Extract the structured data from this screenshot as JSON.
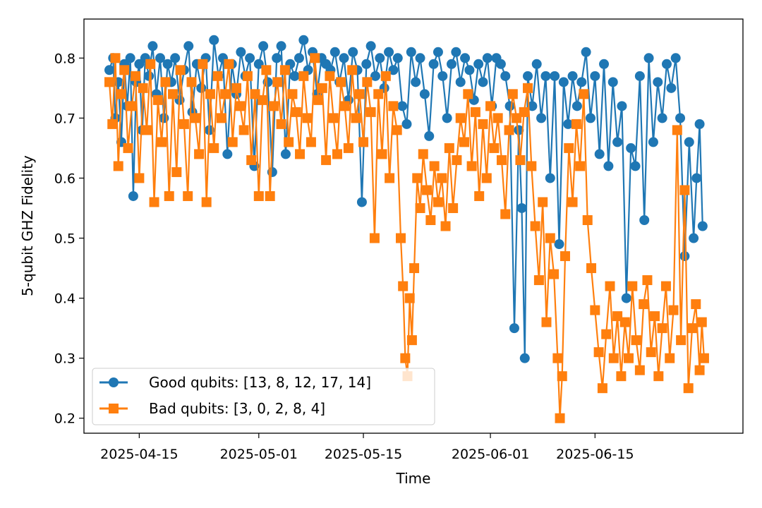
{
  "chart_data": {
    "type": "line",
    "title": "",
    "xlabel": "Time",
    "ylabel": "5-qubit GHZ Fidelity",
    "grid": false,
    "legend_position": "lower-left",
    "x_ticks": [
      "2025-04-15",
      "2025-05-01",
      "2025-05-15",
      "2025-06-01",
      "2025-06-15"
    ],
    "x_tick_days": [
      4,
      20,
      34,
      51,
      65
    ],
    "x_axis_note": "x values are days since 2025-04-11",
    "xlim": [
      -3.4,
      84.8
    ],
    "y_ticks": [
      "0.2",
      "0.3",
      "0.4",
      "0.5",
      "0.6",
      "0.7",
      "0.8"
    ],
    "y_tick_values": [
      0.2,
      0.3,
      0.4,
      0.5,
      0.6,
      0.7,
      0.8
    ],
    "ylim": [
      0.175,
      0.865
    ],
    "series": [
      {
        "name": "Good qubits: [13, 8, 12, 17, 14]",
        "color": "#1f77b4",
        "marker": "circle",
        "points": [
          [
            0.0,
            0.78
          ],
          [
            0.5,
            0.8
          ],
          [
            0.8,
            0.7
          ],
          [
            1.2,
            0.76
          ],
          [
            1.6,
            0.66
          ],
          [
            2.0,
            0.79
          ],
          [
            2.4,
            0.72
          ],
          [
            2.8,
            0.8
          ],
          [
            3.2,
            0.57
          ],
          [
            3.6,
            0.76
          ],
          [
            4.0,
            0.79
          ],
          [
            4.4,
            0.68
          ],
          [
            4.8,
            0.8
          ],
          [
            5.3,
            0.77
          ],
          [
            5.8,
            0.82
          ],
          [
            6.3,
            0.74
          ],
          [
            6.8,
            0.8
          ],
          [
            7.3,
            0.7
          ],
          [
            7.8,
            0.79
          ],
          [
            8.3,
            0.76
          ],
          [
            8.8,
            0.8
          ],
          [
            9.4,
            0.73
          ],
          [
            10.0,
            0.78
          ],
          [
            10.6,
            0.82
          ],
          [
            11.1,
            0.71
          ],
          [
            11.7,
            0.79
          ],
          [
            12.3,
            0.75
          ],
          [
            12.9,
            0.8
          ],
          [
            13.4,
            0.68
          ],
          [
            14.0,
            0.83
          ],
          [
            14.6,
            0.77
          ],
          [
            15.2,
            0.8
          ],
          [
            15.8,
            0.64
          ],
          [
            16.4,
            0.79
          ],
          [
            17.0,
            0.74
          ],
          [
            17.6,
            0.81
          ],
          [
            18.2,
            0.77
          ],
          [
            18.8,
            0.8
          ],
          [
            19.4,
            0.62
          ],
          [
            20.0,
            0.79
          ],
          [
            20.6,
            0.82
          ],
          [
            21.2,
            0.76
          ],
          [
            21.8,
            0.61
          ],
          [
            22.4,
            0.8
          ],
          [
            23.0,
            0.82
          ],
          [
            23.6,
            0.64
          ],
          [
            24.2,
            0.79
          ],
          [
            24.8,
            0.77
          ],
          [
            25.4,
            0.8
          ],
          [
            26.0,
            0.83
          ],
          [
            26.6,
            0.78
          ],
          [
            27.2,
            0.81
          ],
          [
            27.8,
            0.74
          ],
          [
            28.4,
            0.8
          ],
          [
            29.0,
            0.79
          ],
          [
            29.6,
            0.78
          ],
          [
            30.2,
            0.81
          ],
          [
            30.8,
            0.76
          ],
          [
            31.4,
            0.8
          ],
          [
            32.0,
            0.73
          ],
          [
            32.6,
            0.81
          ],
          [
            33.2,
            0.78
          ],
          [
            33.8,
            0.56
          ],
          [
            34.4,
            0.79
          ],
          [
            35.0,
            0.82
          ],
          [
            35.6,
            0.77
          ],
          [
            36.2,
            0.8
          ],
          [
            36.8,
            0.75
          ],
          [
            37.4,
            0.81
          ],
          [
            38.0,
            0.78
          ],
          [
            38.6,
            0.8
          ],
          [
            39.2,
            0.72
          ],
          [
            39.8,
            0.69
          ],
          [
            40.4,
            0.81
          ],
          [
            41.0,
            0.76
          ],
          [
            41.6,
            0.8
          ],
          [
            42.2,
            0.74
          ],
          [
            42.8,
            0.67
          ],
          [
            43.4,
            0.79
          ],
          [
            44.0,
            0.81
          ],
          [
            44.6,
            0.77
          ],
          [
            45.2,
            0.7
          ],
          [
            45.8,
            0.79
          ],
          [
            46.4,
            0.81
          ],
          [
            47.0,
            0.76
          ],
          [
            47.6,
            0.8
          ],
          [
            48.2,
            0.78
          ],
          [
            48.8,
            0.73
          ],
          [
            49.4,
            0.79
          ],
          [
            50.0,
            0.76
          ],
          [
            50.6,
            0.8
          ],
          [
            51.2,
            0.72
          ],
          [
            51.8,
            0.8
          ],
          [
            52.4,
            0.79
          ],
          [
            53.0,
            0.77
          ],
          [
            53.6,
            0.72
          ],
          [
            54.2,
            0.35
          ],
          [
            54.8,
            0.68
          ],
          [
            55.2,
            0.55
          ],
          [
            55.6,
            0.3
          ],
          [
            56.0,
            0.77
          ],
          [
            56.6,
            0.72
          ],
          [
            57.2,
            0.79
          ],
          [
            57.8,
            0.7
          ],
          [
            58.4,
            0.77
          ],
          [
            59.0,
            0.6
          ],
          [
            59.6,
            0.77
          ],
          [
            60.2,
            0.49
          ],
          [
            60.8,
            0.76
          ],
          [
            61.4,
            0.69
          ],
          [
            62.0,
            0.77
          ],
          [
            62.6,
            0.72
          ],
          [
            63.2,
            0.76
          ],
          [
            63.8,
            0.81
          ],
          [
            64.4,
            0.7
          ],
          [
            65.0,
            0.77
          ],
          [
            65.6,
            0.64
          ],
          [
            66.2,
            0.79
          ],
          [
            66.8,
            0.62
          ],
          [
            67.4,
            0.76
          ],
          [
            68.0,
            0.66
          ],
          [
            68.6,
            0.72
          ],
          [
            69.2,
            0.4
          ],
          [
            69.8,
            0.65
          ],
          [
            70.4,
            0.62
          ],
          [
            71.0,
            0.77
          ],
          [
            71.6,
            0.53
          ],
          [
            72.2,
            0.8
          ],
          [
            72.8,
            0.66
          ],
          [
            73.4,
            0.76
          ],
          [
            74.0,
            0.7
          ],
          [
            74.6,
            0.79
          ],
          [
            75.2,
            0.75
          ],
          [
            75.8,
            0.8
          ],
          [
            76.4,
            0.7
          ],
          [
            77.0,
            0.47
          ],
          [
            77.6,
            0.66
          ],
          [
            78.2,
            0.5
          ],
          [
            78.6,
            0.6
          ],
          [
            79.0,
            0.69
          ],
          [
            79.4,
            0.52
          ]
        ]
      },
      {
        "name": "Bad qubits: [3, 0, 2, 8, 4]",
        "color": "#ff7f0e",
        "marker": "square",
        "points": [
          [
            0.0,
            0.76
          ],
          [
            0.4,
            0.69
          ],
          [
            0.8,
            0.8
          ],
          [
            1.2,
            0.62
          ],
          [
            1.6,
            0.74
          ],
          [
            2.0,
            0.78
          ],
          [
            2.5,
            0.65
          ],
          [
            3.0,
            0.72
          ],
          [
            3.5,
            0.77
          ],
          [
            4.0,
            0.6
          ],
          [
            4.5,
            0.75
          ],
          [
            5.0,
            0.68
          ],
          [
            5.5,
            0.79
          ],
          [
            6.0,
            0.56
          ],
          [
            6.5,
            0.73
          ],
          [
            7.0,
            0.66
          ],
          [
            7.5,
            0.76
          ],
          [
            8.0,
            0.57
          ],
          [
            8.5,
            0.74
          ],
          [
            9.0,
            0.61
          ],
          [
            9.5,
            0.78
          ],
          [
            10.0,
            0.69
          ],
          [
            10.5,
            0.57
          ],
          [
            11.0,
            0.76
          ],
          [
            11.5,
            0.7
          ],
          [
            12.0,
            0.64
          ],
          [
            12.5,
            0.79
          ],
          [
            13.0,
            0.56
          ],
          [
            13.5,
            0.74
          ],
          [
            14.0,
            0.65
          ],
          [
            14.5,
            0.77
          ],
          [
            15.0,
            0.7
          ],
          [
            15.5,
            0.74
          ],
          [
            16.0,
            0.79
          ],
          [
            16.5,
            0.66
          ],
          [
            17.0,
            0.75
          ],
          [
            17.5,
            0.72
          ],
          [
            18.0,
            0.68
          ],
          [
            18.5,
            0.77
          ],
          [
            19.0,
            0.63
          ],
          [
            19.5,
            0.74
          ],
          [
            20.0,
            0.57
          ],
          [
            20.5,
            0.73
          ],
          [
            21.0,
            0.78
          ],
          [
            21.5,
            0.57
          ],
          [
            22.0,
            0.72
          ],
          [
            22.5,
            0.76
          ],
          [
            23.0,
            0.69
          ],
          [
            23.5,
            0.78
          ],
          [
            24.0,
            0.66
          ],
          [
            24.5,
            0.74
          ],
          [
            25.0,
            0.71
          ],
          [
            25.5,
            0.64
          ],
          [
            26.0,
            0.77
          ],
          [
            26.5,
            0.7
          ],
          [
            27.0,
            0.66
          ],
          [
            27.5,
            0.8
          ],
          [
            28.0,
            0.73
          ],
          [
            28.5,
            0.75
          ],
          [
            29.0,
            0.63
          ],
          [
            29.5,
            0.77
          ],
          [
            30.0,
            0.7
          ],
          [
            30.5,
            0.64
          ],
          [
            31.0,
            0.76
          ],
          [
            31.5,
            0.72
          ],
          [
            32.0,
            0.65
          ],
          [
            32.5,
            0.78
          ],
          [
            33.0,
            0.7
          ],
          [
            33.5,
            0.74
          ],
          [
            34.0,
            0.66
          ],
          [
            34.5,
            0.76
          ],
          [
            35.0,
            0.71
          ],
          [
            35.5,
            0.5
          ],
          [
            36.0,
            0.74
          ],
          [
            36.5,
            0.64
          ],
          [
            37.0,
            0.77
          ],
          [
            37.5,
            0.6
          ],
          [
            38.0,
            0.72
          ],
          [
            38.5,
            0.68
          ],
          [
            39.0,
            0.5
          ],
          [
            39.3,
            0.42
          ],
          [
            39.6,
            0.3
          ],
          [
            39.9,
            0.27
          ],
          [
            40.2,
            0.4
          ],
          [
            40.5,
            0.33
          ],
          [
            40.8,
            0.45
          ],
          [
            41.2,
            0.6
          ],
          [
            41.6,
            0.55
          ],
          [
            42.0,
            0.64
          ],
          [
            42.5,
            0.58
          ],
          [
            43.0,
            0.53
          ],
          [
            43.5,
            0.62
          ],
          [
            44.0,
            0.56
          ],
          [
            44.5,
            0.6
          ],
          [
            45.0,
            0.52
          ],
          [
            45.5,
            0.65
          ],
          [
            46.0,
            0.55
          ],
          [
            46.5,
            0.63
          ],
          [
            47.0,
            0.7
          ],
          [
            47.5,
            0.66
          ],
          [
            48.0,
            0.74
          ],
          [
            48.5,
            0.62
          ],
          [
            49.0,
            0.71
          ],
          [
            49.5,
            0.57
          ],
          [
            50.0,
            0.69
          ],
          [
            50.5,
            0.6
          ],
          [
            51.0,
            0.72
          ],
          [
            51.5,
            0.65
          ],
          [
            52.0,
            0.7
          ],
          [
            52.5,
            0.63
          ],
          [
            53.0,
            0.54
          ],
          [
            53.5,
            0.68
          ],
          [
            54.0,
            0.74
          ],
          [
            54.5,
            0.7
          ],
          [
            55.0,
            0.63
          ],
          [
            55.5,
            0.71
          ],
          [
            56.0,
            0.75
          ],
          [
            56.5,
            0.62
          ],
          [
            57.0,
            0.52
          ],
          [
            57.5,
            0.43
          ],
          [
            58.0,
            0.56
          ],
          [
            58.5,
            0.36
          ],
          [
            59.0,
            0.5
          ],
          [
            59.5,
            0.44
          ],
          [
            60.0,
            0.3
          ],
          [
            60.3,
            0.2
          ],
          [
            60.6,
            0.27
          ],
          [
            61.0,
            0.47
          ],
          [
            61.5,
            0.65
          ],
          [
            62.0,
            0.56
          ],
          [
            62.5,
            0.69
          ],
          [
            63.0,
            0.62
          ],
          [
            63.5,
            0.74
          ],
          [
            64.0,
            0.53
          ],
          [
            64.5,
            0.45
          ],
          [
            65.0,
            0.38
          ],
          [
            65.5,
            0.31
          ],
          [
            66.0,
            0.25
          ],
          [
            66.5,
            0.34
          ],
          [
            67.0,
            0.42
          ],
          [
            67.5,
            0.3
          ],
          [
            68.0,
            0.37
          ],
          [
            68.5,
            0.27
          ],
          [
            69.0,
            0.36
          ],
          [
            69.5,
            0.3
          ],
          [
            70.0,
            0.42
          ],
          [
            70.5,
            0.33
          ],
          [
            71.0,
            0.28
          ],
          [
            71.5,
            0.39
          ],
          [
            72.0,
            0.43
          ],
          [
            72.5,
            0.31
          ],
          [
            73.0,
            0.37
          ],
          [
            73.5,
            0.27
          ],
          [
            74.0,
            0.35
          ],
          [
            74.5,
            0.42
          ],
          [
            75.0,
            0.3
          ],
          [
            75.5,
            0.38
          ],
          [
            76.0,
            0.68
          ],
          [
            76.5,
            0.33
          ],
          [
            77.0,
            0.58
          ],
          [
            77.5,
            0.25
          ],
          [
            78.0,
            0.35
          ],
          [
            78.5,
            0.39
          ],
          [
            79.0,
            0.28
          ],
          [
            79.3,
            0.36
          ],
          [
            79.6,
            0.3
          ]
        ]
      }
    ]
  }
}
